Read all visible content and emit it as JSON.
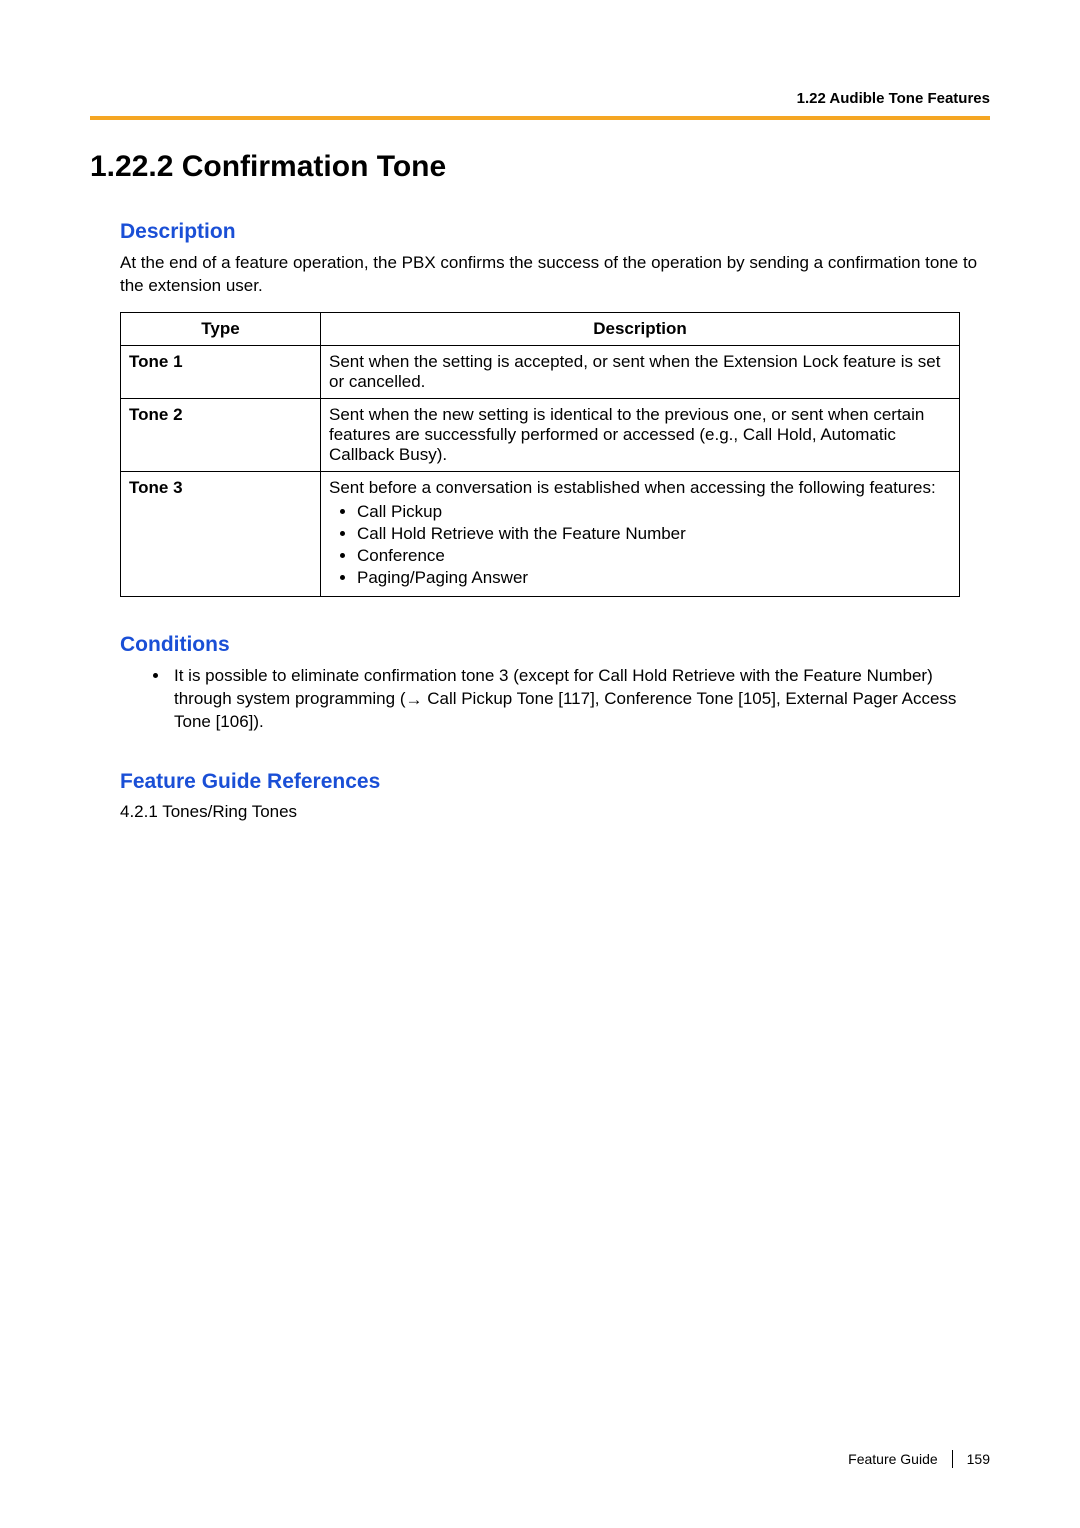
{
  "header": {
    "running_head": "1.22 Audible Tone Features",
    "rule_color": "#f5a623"
  },
  "title": "1.22.2  Confirmation Tone",
  "section_heading_color": "#1a4fd6",
  "description": {
    "heading": "Description",
    "paragraph": "At the end of a feature operation, the PBX confirms the success of the operation by sending a confirmation tone to the extension user."
  },
  "table": {
    "columns": [
      "Type",
      "Description"
    ],
    "rows": [
      {
        "type": "Tone 1",
        "desc": "Sent when the setting is accepted, or sent when the Extension Lock feature is set or cancelled."
      },
      {
        "type": "Tone 2",
        "desc": "Sent when the new setting is identical to the previous one, or sent when certain features are successfully performed or accessed (e.g., Call Hold, Automatic Callback Busy)."
      },
      {
        "type": "Tone 3",
        "desc_lead": "Sent before a conversation is established when accessing the following features:",
        "items": [
          "Call Pickup",
          "Call Hold Retrieve with the Feature Number",
          "Conference",
          "Paging/Paging Answer"
        ]
      }
    ]
  },
  "conditions": {
    "heading": "Conditions",
    "bullet_pre": "It is possible to eliminate confirmation tone 3 (except for Call Hold Retrieve with the Feature Number) through system programming (",
    "arrow_glyph": "→",
    "bullet_post": " Call Pickup Tone [117], Conference Tone [105], External Pager Access Tone [106])."
  },
  "references": {
    "heading": "Feature Guide References",
    "line": "4.2.1 Tones/Ring Tones"
  },
  "footer": {
    "doc": "Feature Guide",
    "page": "159"
  }
}
